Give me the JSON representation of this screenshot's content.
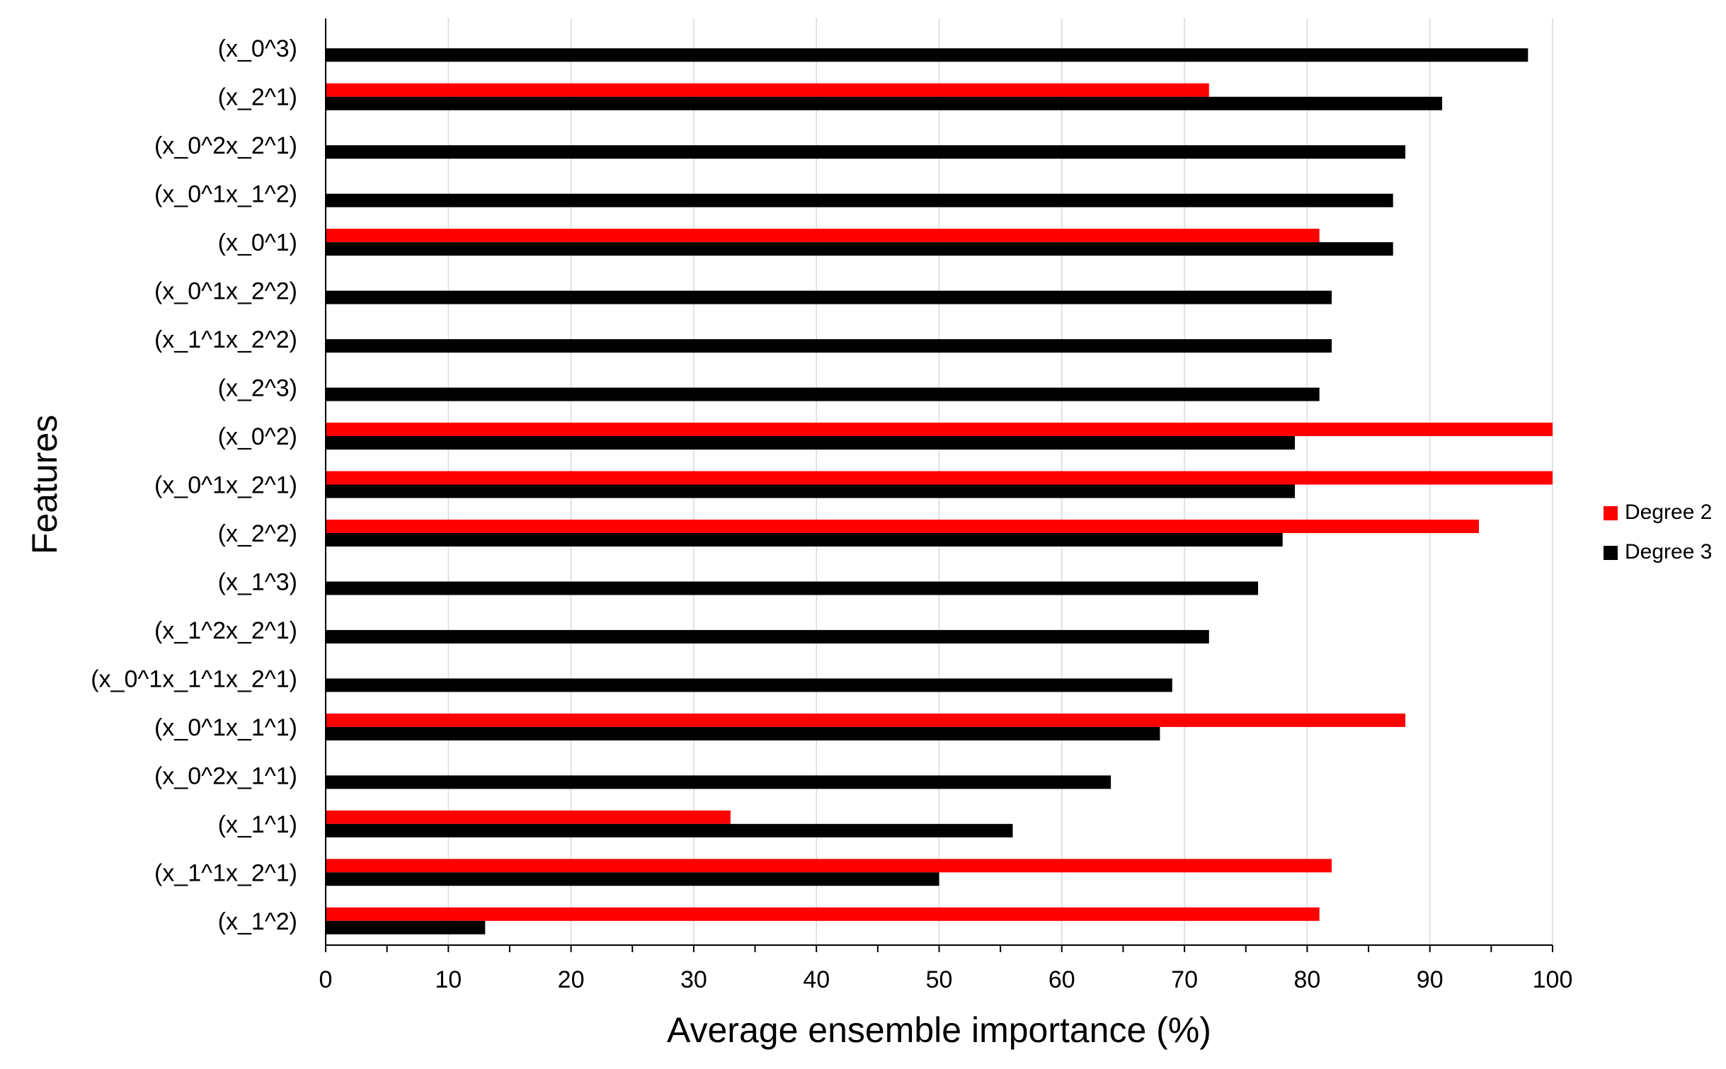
{
  "chart_data": {
    "type": "bar",
    "orientation": "horizontal",
    "title": "",
    "xlabel": "Average ensemble importance (%)",
    "ylabel": "Features",
    "xlim": [
      0,
      100
    ],
    "xticks": [
      0,
      10,
      20,
      30,
      40,
      50,
      60,
      70,
      80,
      90,
      100
    ],
    "grid": "vertical",
    "legend_position": "right",
    "categories": [
      "(x_0^3)",
      "(x_2^1)",
      "(x_0^2x_2^1)",
      "(x_0^1x_1^2)",
      "(x_0^1)",
      "(x_0^1x_2^2)",
      "(x_1^1x_2^2)",
      "(x_2^3)",
      "(x_0^2)",
      "(x_0^1x_2^1)",
      "(x_2^2)",
      "(x_1^3)",
      "(x_1^2x_2^1)",
      "(x_0^1x_1^1x_2^1)",
      "(x_0^1x_1^1)",
      "(x_0^2x_1^1)",
      "(x_1^1)",
      "(x_1^1x_2^1)",
      "(x_1^2)"
    ],
    "series": [
      {
        "name": "Degree 2",
        "color": "#ff0000",
        "values": [
          null,
          72,
          null,
          null,
          81,
          null,
          null,
          null,
          100,
          100,
          94,
          null,
          null,
          null,
          88,
          null,
          33,
          82,
          81
        ]
      },
      {
        "name": "Degree 3",
        "color": "#000000",
        "values": [
          98,
          91,
          88,
          87,
          87,
          82,
          82,
          81,
          79,
          79,
          78,
          76,
          72,
          69,
          68,
          64,
          56,
          50,
          13
        ]
      }
    ]
  }
}
